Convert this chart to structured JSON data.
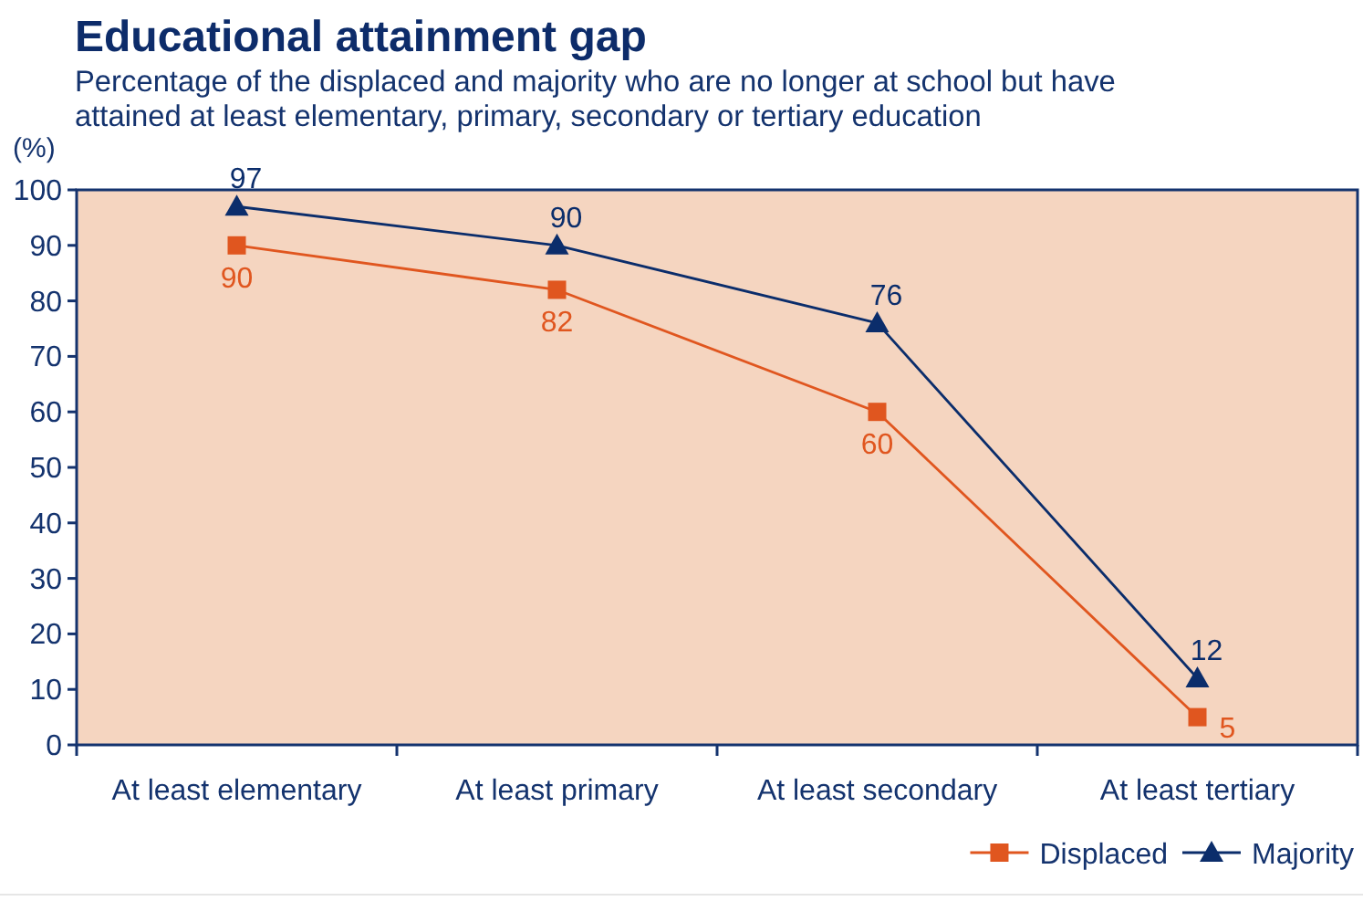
{
  "chart_data": {
    "type": "line",
    "title": "Educational attainment gap",
    "subtitle": "Percentage of the displaced and majority who are no longer at school but have attained at least elementary, primary, secondary or tertiary education",
    "ylabel": "(%)",
    "categories": [
      "At least elementary",
      "At least primary",
      "At least secondary",
      "At least tertiary"
    ],
    "series": [
      {
        "name": "Displaced",
        "color": "#e0561f",
        "marker": "square",
        "values": [
          90,
          82,
          60,
          5
        ]
      },
      {
        "name": "Majority",
        "color": "#0b2d6b",
        "marker": "triangle",
        "values": [
          97,
          90,
          76,
          12
        ]
      }
    ],
    "ylim": [
      0,
      100
    ],
    "yticks": [
      0,
      10,
      20,
      30,
      40,
      50,
      60,
      70,
      80,
      90,
      100
    ],
    "data_labels": true,
    "legend": "bottom right",
    "line_style": "solid"
  }
}
